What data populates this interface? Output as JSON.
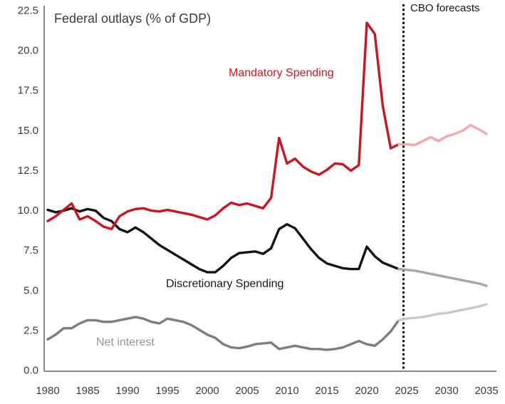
{
  "labels": {
    "cbo_forecasts": "CBO forecasts"
  },
  "colors": {
    "axis": "#8a8a8a",
    "divider": "#000000",
    "tick_text": "#3c3c3c",
    "title_text": "#3c3c3c",
    "mandatory_red": "#cf1420",
    "mandatory_forecast_pink": "#f2a8ae",
    "discretionary_black": "#141414",
    "discretionary_forecast_gray": "#a8a8a8",
    "net_interest_gray": "#7e7e7e",
    "net_interest_forecast_gray": "#c9c9c9"
  },
  "chart_data": {
    "type": "line",
    "title": "Federal outlays (% of GDP)",
    "xlabel": "",
    "ylabel": "",
    "xlim": [
      1980,
      2035
    ],
    "ylim": [
      0,
      22.5
    ],
    "grid": false,
    "legend_position": "inline-labels",
    "x_ticks": [
      "1980",
      "1985",
      "1990",
      "1995",
      "2000",
      "2005",
      "2010",
      "2015",
      "2020",
      "2025",
      "2030",
      "2035"
    ],
    "y_ticks": [
      "0.0",
      "2.5",
      "5.0",
      "7.5",
      "10.0",
      "12.5",
      "15.0",
      "17.5",
      "20.0",
      "22.5"
    ],
    "x_years_start": 1980,
    "x_years_step": 1,
    "forecast_divider_year": 2024.6,
    "forecast_divider_label": "CBO forecasts",
    "forecast_from_year": 2024,
    "series": [
      {
        "name": "Net interest",
        "color": "#7e7e7e",
        "forecast_color": "#c9c9c9",
        "values": [
          1.9,
          2.2,
          2.6,
          2.6,
          2.9,
          3.1,
          3.1,
          3.0,
          3.0,
          3.1,
          3.2,
          3.3,
          3.2,
          3.0,
          2.9,
          3.2,
          3.1,
          3.0,
          2.8,
          2.5,
          2.2,
          2.0,
          1.6,
          1.4,
          1.35,
          1.45,
          1.6,
          1.65,
          1.7,
          1.3,
          1.4,
          1.5,
          1.4,
          1.3,
          1.3,
          1.25,
          1.3,
          1.4,
          1.6,
          1.8,
          1.6,
          1.5,
          1.9,
          2.4,
          3.1,
          3.2,
          3.25,
          3.3,
          3.4,
          3.5,
          3.55,
          3.65,
          3.75,
          3.85,
          3.95,
          4.1
        ]
      },
      {
        "name": "Discretionary Spending",
        "color": "#141414",
        "forecast_color": "#a8a8a8",
        "values": [
          10.0,
          9.85,
          9.95,
          10.1,
          9.9,
          10.05,
          9.95,
          9.5,
          9.3,
          8.8,
          8.6,
          8.9,
          8.6,
          8.2,
          7.8,
          7.5,
          7.2,
          6.9,
          6.6,
          6.3,
          6.1,
          6.1,
          6.5,
          7.0,
          7.3,
          7.35,
          7.4,
          7.25,
          7.6,
          8.8,
          9.1,
          8.85,
          8.2,
          7.55,
          7.0,
          6.65,
          6.5,
          6.35,
          6.3,
          6.3,
          7.7,
          7.1,
          6.7,
          6.5,
          6.3,
          6.25,
          6.2,
          6.1,
          6.0,
          5.9,
          5.8,
          5.7,
          5.6,
          5.5,
          5.4,
          5.25
        ]
      },
      {
        "name": "Mandatory Spending",
        "color": "#cf1420",
        "forecast_color": "#f2a8ae",
        "values": [
          9.3,
          9.6,
          10.0,
          10.4,
          9.4,
          9.6,
          9.3,
          8.95,
          8.8,
          9.6,
          9.9,
          10.05,
          10.1,
          9.95,
          9.9,
          10.0,
          9.9,
          9.8,
          9.7,
          9.55,
          9.4,
          9.65,
          10.1,
          10.45,
          10.3,
          10.4,
          10.25,
          10.1,
          10.75,
          14.5,
          12.9,
          13.2,
          12.7,
          12.4,
          12.2,
          12.5,
          12.9,
          12.85,
          12.45,
          12.8,
          21.7,
          21.0,
          16.5,
          13.85,
          14.1,
          14.1,
          14.05,
          14.3,
          14.55,
          14.3,
          14.6,
          14.75,
          14.95,
          15.3,
          15.05,
          14.75
        ]
      }
    ]
  }
}
